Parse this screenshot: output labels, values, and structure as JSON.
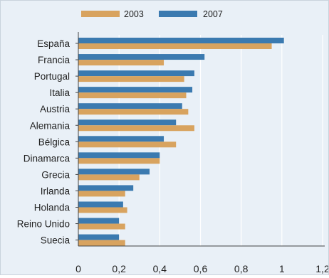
{
  "chart_data": {
    "type": "bar",
    "orientation": "horizontal",
    "categories": [
      "España",
      "Francia",
      "Portugal",
      "Italia",
      "Austria",
      "Alemania",
      "Bélgica",
      "Dinamarca",
      "Grecia",
      "Irlanda",
      "Holanda",
      "Reino Unido",
      "Suecia"
    ],
    "series": [
      {
        "name": "2003",
        "color": "#d8a35f",
        "values": [
          0.95,
          0.42,
          0.52,
          0.53,
          0.54,
          0.57,
          0.48,
          0.4,
          0.3,
          0.23,
          0.24,
          0.23,
          0.23
        ]
      },
      {
        "name": "2007",
        "color": "#3b7ab0",
        "values": [
          1.01,
          0.62,
          0.57,
          0.56,
          0.51,
          0.48,
          0.42,
          0.4,
          0.35,
          0.27,
          0.22,
          0.2,
          0.2
        ]
      }
    ],
    "xlim": [
      0,
      1.2
    ],
    "xticks": [
      "0",
      "0,2",
      "0,4",
      "0,6",
      "0,8",
      "1",
      "1,2"
    ],
    "xtick_values": [
      0,
      0.2,
      0.4,
      0.6,
      0.8,
      1.0,
      1.2
    ],
    "grid": true,
    "legend_position": "top-left",
    "title": "",
    "xlabel": "",
    "ylabel": ""
  }
}
